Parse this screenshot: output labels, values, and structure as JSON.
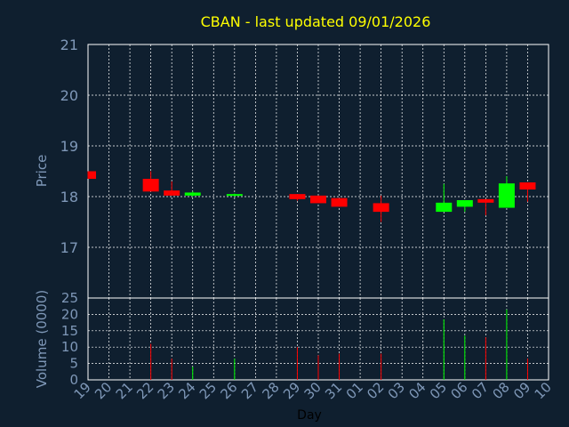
{
  "title": "CBAN - last updated 09/01/2026",
  "colors": {
    "background": "#0f1f2f",
    "title": "#ffff00",
    "axis_text": "#7f98b8",
    "up": "#00ff00",
    "down": "#ff0000",
    "grid": "#ffffff"
  },
  "chart_data": [
    {
      "type": "candlestick",
      "ylabel": "Price",
      "ylim": [
        16,
        21
      ],
      "yticks": [
        17,
        18,
        19,
        20,
        21
      ],
      "grid": true,
      "categories": [
        "19",
        "20",
        "21",
        "22",
        "23",
        "24",
        "25",
        "26",
        "27",
        "28",
        "29",
        "30",
        "31",
        "01",
        "02",
        "03",
        "04",
        "05",
        "06",
        "07",
        "08",
        "09",
        "10"
      ],
      "candles": [
        {
          "day": "19",
          "open": 18.5,
          "high": 18.5,
          "low": 18.35,
          "close": 18.35
        },
        {
          "day": "22",
          "open": 18.35,
          "high": 18.5,
          "low": 18.1,
          "close": 18.1
        },
        {
          "day": "23",
          "open": 18.12,
          "high": 18.3,
          "low": 18.02,
          "close": 18.02
        },
        {
          "day": "24",
          "open": 18.02,
          "high": 18.1,
          "low": 18.0,
          "close": 18.08
        },
        {
          "day": "26",
          "open": 18.02,
          "high": 18.06,
          "low": 18.0,
          "close": 18.05
        },
        {
          "day": "29",
          "open": 18.05,
          "high": 18.05,
          "low": 17.92,
          "close": 17.95
        },
        {
          "day": "30",
          "open": 18.02,
          "high": 18.02,
          "low": 17.87,
          "close": 17.87
        },
        {
          "day": "31",
          "open": 17.97,
          "high": 17.97,
          "low": 17.8,
          "close": 17.8
        },
        {
          "day": "02",
          "open": 17.87,
          "high": 18.02,
          "low": 17.5,
          "close": 17.7
        },
        {
          "day": "05",
          "open": 17.7,
          "high": 18.25,
          "low": 17.7,
          "close": 17.88
        },
        {
          "day": "06",
          "open": 17.8,
          "high": 17.93,
          "low": 17.7,
          "close": 17.93
        },
        {
          "day": "07",
          "open": 17.95,
          "high": 17.95,
          "low": 17.63,
          "close": 17.88
        },
        {
          "day": "08",
          "open": 17.78,
          "high": 18.4,
          "low": 17.78,
          "close": 18.26
        },
        {
          "day": "09",
          "open": 18.28,
          "high": 18.28,
          "low": 17.9,
          "close": 18.14
        }
      ]
    },
    {
      "type": "bar",
      "ylabel": "Volume (0000)",
      "xlabel": "Day",
      "ylim": [
        0,
        25
      ],
      "yticks": [
        0,
        5,
        10,
        15,
        20,
        25
      ],
      "grid": true,
      "categories": [
        "19",
        "20",
        "21",
        "22",
        "23",
        "24",
        "25",
        "26",
        "27",
        "28",
        "29",
        "30",
        "31",
        "01",
        "02",
        "03",
        "04",
        "05",
        "06",
        "07",
        "08",
        "09",
        "10"
      ],
      "bars": [
        {
          "day": "22",
          "value": 11,
          "direction": "down"
        },
        {
          "day": "23",
          "value": 6.5,
          "direction": "down"
        },
        {
          "day": "24",
          "value": 4,
          "direction": "up"
        },
        {
          "day": "26",
          "value": 6.5,
          "direction": "up"
        },
        {
          "day": "29",
          "value": 10,
          "direction": "down"
        },
        {
          "day": "30",
          "value": 7.5,
          "direction": "down"
        },
        {
          "day": "31",
          "value": 8,
          "direction": "down"
        },
        {
          "day": "02",
          "value": 8,
          "direction": "down"
        },
        {
          "day": "05",
          "value": 18.5,
          "direction": "up"
        },
        {
          "day": "06",
          "value": 13.5,
          "direction": "up"
        },
        {
          "day": "07",
          "value": 13,
          "direction": "down"
        },
        {
          "day": "08",
          "value": 21.5,
          "direction": "up"
        },
        {
          "day": "09",
          "value": 6.5,
          "direction": "down"
        }
      ]
    }
  ]
}
